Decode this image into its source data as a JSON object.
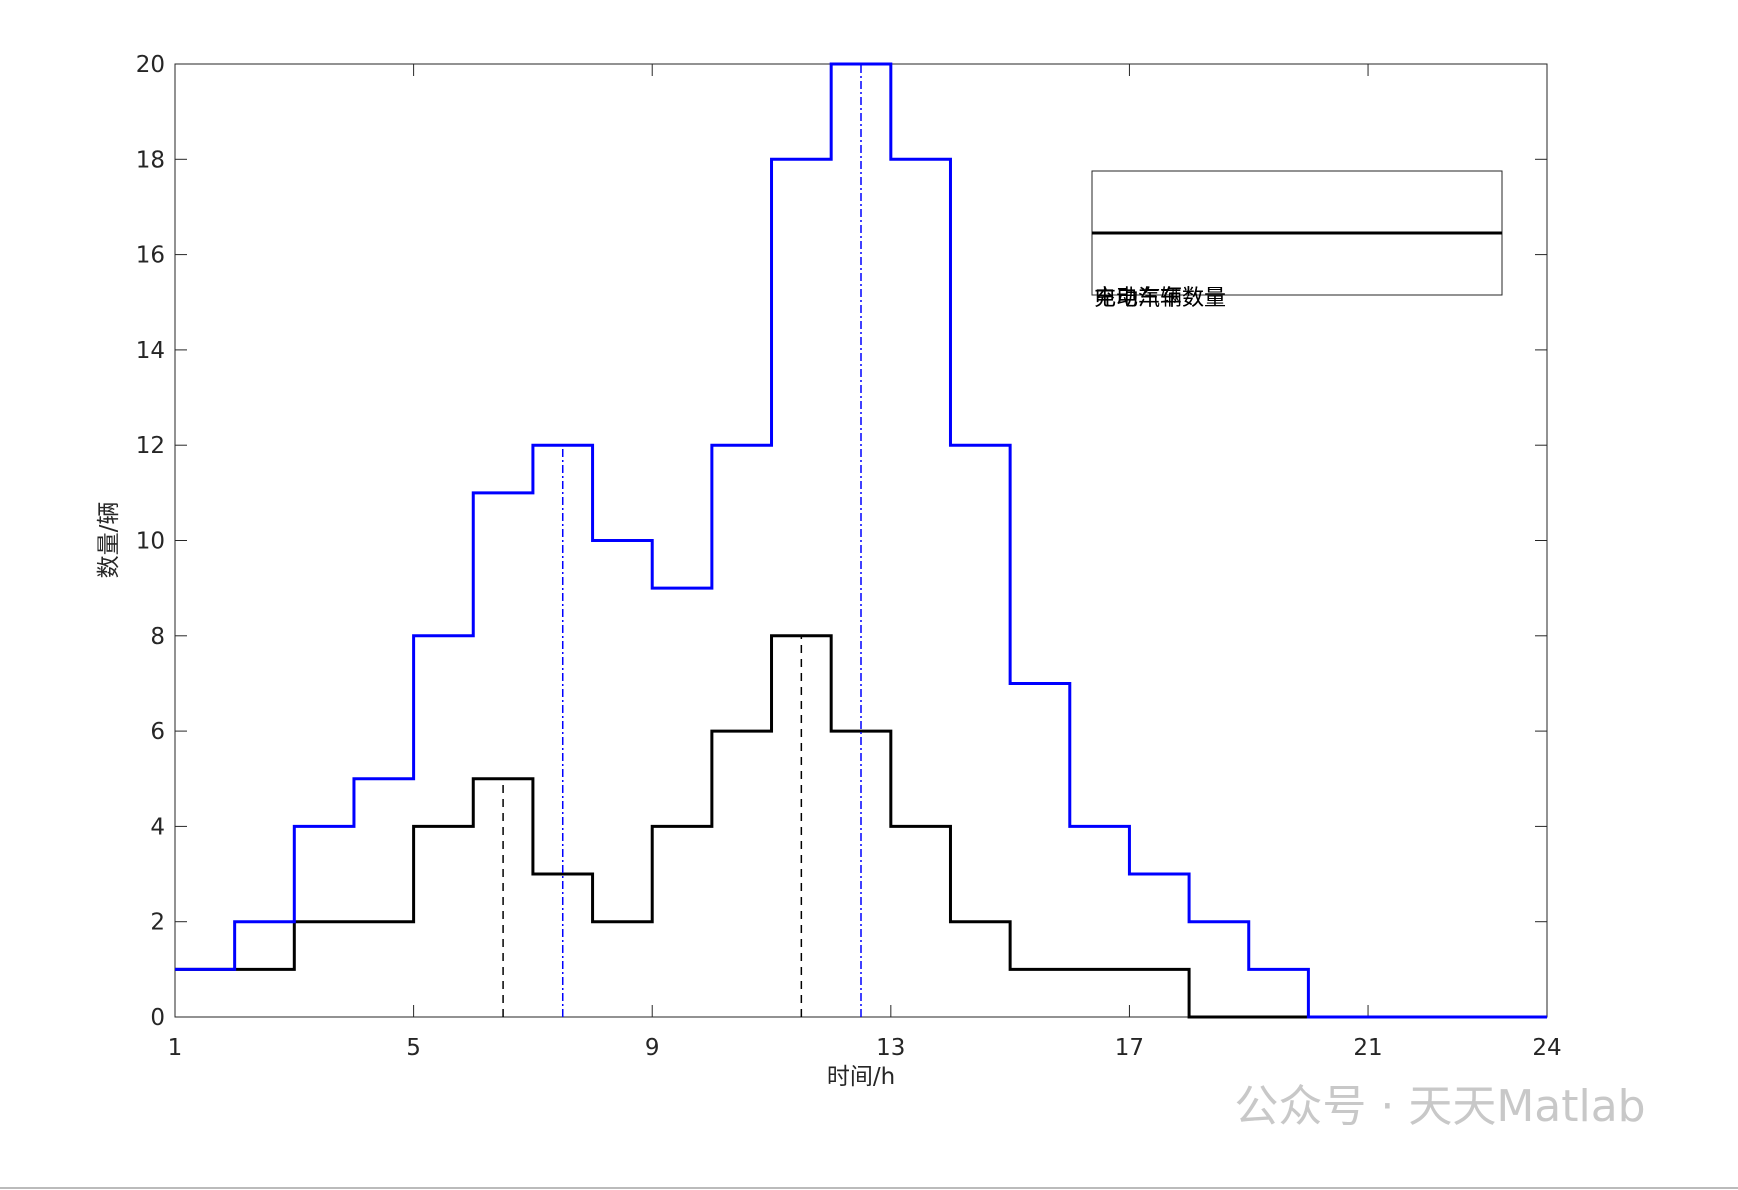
{
  "chart_data": {
    "type": "stairs",
    "xlabel": "时间/h",
    "ylabel": "数量/辆",
    "xlim": [
      1,
      24
    ],
    "xticks": [
      1,
      5,
      9,
      13,
      17,
      21,
      24
    ],
    "ylim": [
      0,
      20
    ],
    "yticks": [
      0,
      2,
      4,
      6,
      8,
      10,
      12,
      14,
      16,
      18,
      20
    ],
    "x": [
      1,
      2,
      3,
      4,
      5,
      6,
      7,
      8,
      9,
      10,
      11,
      12,
      13,
      14,
      15,
      16,
      17,
      18,
      19,
      20,
      21,
      22,
      23,
      24
    ],
    "series": [
      {
        "name": "电动汽车数量",
        "color": "#000000",
        "dash": "8,6",
        "values": [
          1,
          1,
          2,
          2,
          4,
          5,
          3,
          2,
          4,
          6,
          8,
          6,
          4,
          2,
          1,
          1,
          1,
          0,
          0,
          0,
          0,
          0,
          0,
          0
        ],
        "peaks": [
          {
            "x": 6.5,
            "y": 5
          },
          {
            "x": 11.5,
            "y": 8
          }
        ]
      },
      {
        "name": "充电车辆数",
        "color": "#0000ff",
        "dash": "8,3,2,3",
        "values": [
          1,
          2,
          4,
          5,
          8,
          11,
          12,
          10,
          9,
          12,
          18,
          20,
          18,
          12,
          7,
          4,
          3,
          2,
          1,
          0,
          0,
          0,
          0,
          0
        ],
        "peaks": [
          {
            "x": 7.5,
            "y": 12
          },
          {
            "x": 12.5,
            "y": 20
          }
        ]
      }
    ],
    "watermark": "公众号 · 天天Matlab"
  }
}
